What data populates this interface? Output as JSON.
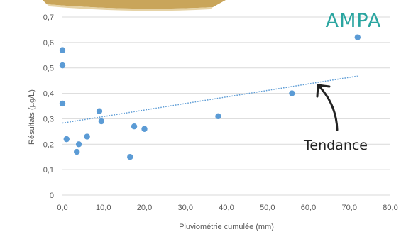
{
  "chart_data": {
    "type": "scatter",
    "title": "",
    "corner_label": "AMPA",
    "xlabel": "Pluviométrie cumulée (mm)",
    "ylabel": "Résultats (µg/L)",
    "xlim": [
      0,
      80
    ],
    "ylim": [
      0,
      0.7
    ],
    "x_ticks": [
      0,
      10,
      20,
      30,
      40,
      50,
      60,
      70,
      80
    ],
    "x_tick_labels": [
      "0,0",
      "10,0",
      "20,0",
      "30,0",
      "40,0",
      "50,0",
      "60,0",
      "70,0",
      "80,0"
    ],
    "y_ticks": [
      0,
      0.1,
      0.2,
      0.3,
      0.4,
      0.5,
      0.6,
      0.7
    ],
    "y_tick_labels": [
      "0",
      "0,1",
      "0,2",
      "0,3",
      "0,4",
      "0,5",
      "0,6",
      "0,7"
    ],
    "grid": "horizontal",
    "points": [
      {
        "x": 0.0,
        "y": 0.57
      },
      {
        "x": 0.0,
        "y": 0.51
      },
      {
        "x": 0.0,
        "y": 0.36
      },
      {
        "x": 1.0,
        "y": 0.22
      },
      {
        "x": 3.5,
        "y": 0.17
      },
      {
        "x": 4.0,
        "y": 0.2
      },
      {
        "x": 6.0,
        "y": 0.23
      },
      {
        "x": 9.0,
        "y": 0.33
      },
      {
        "x": 9.5,
        "y": 0.29
      },
      {
        "x": 16.5,
        "y": 0.15
      },
      {
        "x": 17.5,
        "y": 0.27
      },
      {
        "x": 20.0,
        "y": 0.26
      },
      {
        "x": 38.0,
        "y": 0.31
      },
      {
        "x": 56.0,
        "y": 0.4
      },
      {
        "x": 72.0,
        "y": 0.62
      }
    ],
    "trendline": {
      "label": "Tendance",
      "x": [
        0,
        72
      ],
      "y": [
        0.283,
        0.468
      ],
      "style": "dotted"
    },
    "colors": {
      "point": "#5b9bd5",
      "trend": "#5b9bd5",
      "grid": "#d9d9d9",
      "axis_text": "#595959",
      "corner_label": "#2aa5a0",
      "annotation": "#222222",
      "banner": "#c9a55a"
    }
  }
}
